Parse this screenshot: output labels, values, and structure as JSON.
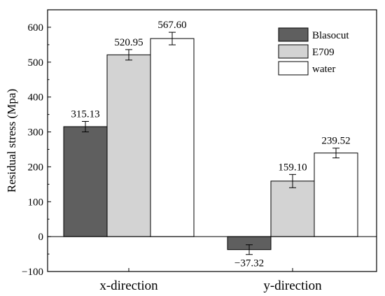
{
  "chart_data": {
    "type": "bar",
    "title": "",
    "xlabel": "",
    "ylabel": "Residual stress (Mpa)",
    "categories": [
      "x-direction",
      "y-direction"
    ],
    "ylim": [
      -100,
      650
    ],
    "yticks": [
      -100,
      0,
      100,
      200,
      300,
      400,
      500,
      600
    ],
    "ytick_labels": [
      "−100",
      "0",
      "100",
      "200",
      "300",
      "400",
      "500",
      "600"
    ],
    "legend_position": "top-right",
    "grid": false,
    "series": [
      {
        "name": "Blasocut",
        "color": "#5f5f5f",
        "values": [
          315.13,
          -37.32
        ],
        "errors": [
          15,
          14
        ],
        "labels": [
          "315.13",
          "−37.32"
        ]
      },
      {
        "name": "E709",
        "color": "#d3d3d3",
        "values": [
          520.95,
          159.1
        ],
        "errors": [
          15,
          19
        ],
        "labels": [
          "520.95",
          "159.10"
        ]
      },
      {
        "name": "water",
        "color": "#ffffff",
        "values": [
          567.6,
          239.52
        ],
        "errors": [
          18,
          14
        ],
        "labels": [
          "567.60",
          "239.52"
        ]
      }
    ]
  }
}
